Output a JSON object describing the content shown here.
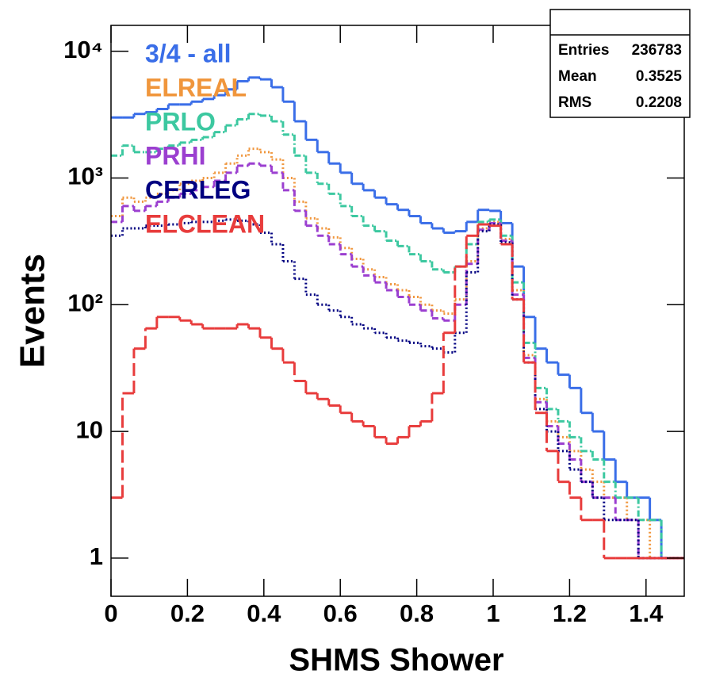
{
  "chart_data": {
    "type": "histogram",
    "x_label": "SHMS Shower",
    "y_label": "Events",
    "log_y": true,
    "xlim": [
      0,
      1.5
    ],
    "ylim": [
      0.5,
      16000
    ],
    "xticks": [
      0,
      0.2,
      0.4,
      0.6,
      0.8,
      1,
      1.2,
      1.4
    ],
    "yticks": [
      1,
      10,
      {
        "value": 100,
        "label": "10²"
      },
      {
        "value": 1000,
        "label": "10³"
      },
      {
        "value": 10000,
        "label": "10⁴"
      }
    ],
    "bins": [
      0,
      0.03,
      0.06,
      0.09,
      0.12,
      0.15,
      0.18,
      0.21,
      0.24,
      0.27,
      0.3,
      0.33,
      0.36,
      0.39,
      0.42,
      0.45,
      0.48,
      0.51,
      0.54,
      0.57,
      0.6,
      0.63,
      0.66,
      0.69,
      0.72,
      0.75,
      0.78,
      0.81,
      0.84,
      0.87,
      0.9,
      0.93,
      0.96,
      0.99,
      1.02,
      1.05,
      1.08,
      1.11,
      1.14,
      1.17,
      1.2,
      1.23,
      1.26,
      1.29,
      1.32,
      1.35,
      1.38,
      1.41,
      1.44,
      1.47,
      1.5
    ],
    "series": [
      {
        "name": "3/4 - all",
        "color": "#3a6ee8",
        "style": "solid",
        "values": [
          3000,
          3000,
          3200,
          3300,
          3500,
          3800,
          3800,
          4000,
          4200,
          4500,
          5000,
          5800,
          6200,
          6000,
          5200,
          4000,
          2800,
          2000,
          1600,
          1300,
          1100,
          900,
          800,
          700,
          620,
          560,
          500,
          440,
          400,
          370,
          380,
          450,
          560,
          550,
          440,
          200,
          80,
          45,
          35,
          28,
          22,
          14,
          10,
          6,
          4,
          3,
          3,
          2,
          1,
          1
        ]
      },
      {
        "name": "ELREAL",
        "color": "#f0963c",
        "style": "dotted",
        "values": [
          500,
          700,
          650,
          700,
          750,
          800,
          900,
          950,
          1000,
          1100,
          1300,
          1500,
          1700,
          1600,
          1400,
          1000,
          650,
          480,
          400,
          340,
          280,
          230,
          190,
          165,
          145,
          130,
          115,
          100,
          90,
          85,
          110,
          220,
          400,
          450,
          330,
          130,
          40,
          18,
          12,
          9,
          7,
          5,
          4,
          3,
          3,
          2,
          2,
          1,
          1,
          1
        ]
      },
      {
        "name": "PRLO",
        "color": "#3cc8a0",
        "style": "dashdot",
        "values": [
          1500,
          1800,
          1600,
          1600,
          1700,
          1800,
          1900,
          2000,
          2100,
          2300,
          2600,
          2900,
          3200,
          3100,
          2800,
          2200,
          1500,
          1100,
          900,
          750,
          600,
          500,
          420,
          380,
          320,
          290,
          250,
          220,
          190,
          180,
          200,
          300,
          450,
          470,
          350,
          150,
          50,
          22,
          15,
          12,
          9,
          7,
          6,
          4,
          3,
          3,
          2,
          2,
          1,
          1
        ]
      },
      {
        "name": "PRHI",
        "color": "#9b3fd0",
        "style": "dashed",
        "values": [
          450,
          600,
          550,
          600,
          650,
          700,
          750,
          800,
          850,
          950,
          1100,
          1250,
          1300,
          1250,
          1100,
          800,
          550,
          420,
          350,
          300,
          250,
          200,
          170,
          150,
          130,
          115,
          100,
          90,
          78,
          75,
          100,
          210,
          390,
          440,
          320,
          120,
          38,
          17,
          11,
          8,
          6,
          4,
          3,
          3,
          2,
          2,
          1,
          1,
          1,
          1
        ]
      },
      {
        "name": "CERLEG",
        "color": "#000080",
        "style": "dotted",
        "values": [
          350,
          400,
          400,
          420,
          420,
          430,
          440,
          450,
          450,
          460,
          470,
          460,
          430,
          370,
          300,
          220,
          160,
          120,
          100,
          90,
          80,
          70,
          65,
          60,
          55,
          52,
          50,
          47,
          45,
          42,
          60,
          180,
          380,
          430,
          310,
          110,
          35,
          15,
          10,
          7,
          5,
          4,
          3,
          2,
          2,
          2,
          1,
          1,
          1,
          1
        ]
      },
      {
        "name": "ELCLEAN",
        "color": "#e83c3c",
        "style": "longdash",
        "values": [
          3,
          20,
          45,
          65,
          80,
          80,
          75,
          70,
          65,
          65,
          65,
          70,
          65,
          55,
          45,
          35,
          25,
          20,
          18,
          16,
          14,
          12,
          11,
          9,
          8,
          9,
          11,
          12,
          20,
          60,
          200,
          350,
          430,
          420,
          300,
          110,
          35,
          14,
          7,
          4,
          3,
          2,
          2,
          1,
          1,
          1,
          1,
          1,
          1,
          1
        ]
      }
    ],
    "stats": {
      "rows": [
        [
          "Entries",
          "236783"
        ],
        [
          "Mean",
          "0.3525"
        ],
        [
          "RMS",
          "0.2208"
        ]
      ]
    }
  }
}
